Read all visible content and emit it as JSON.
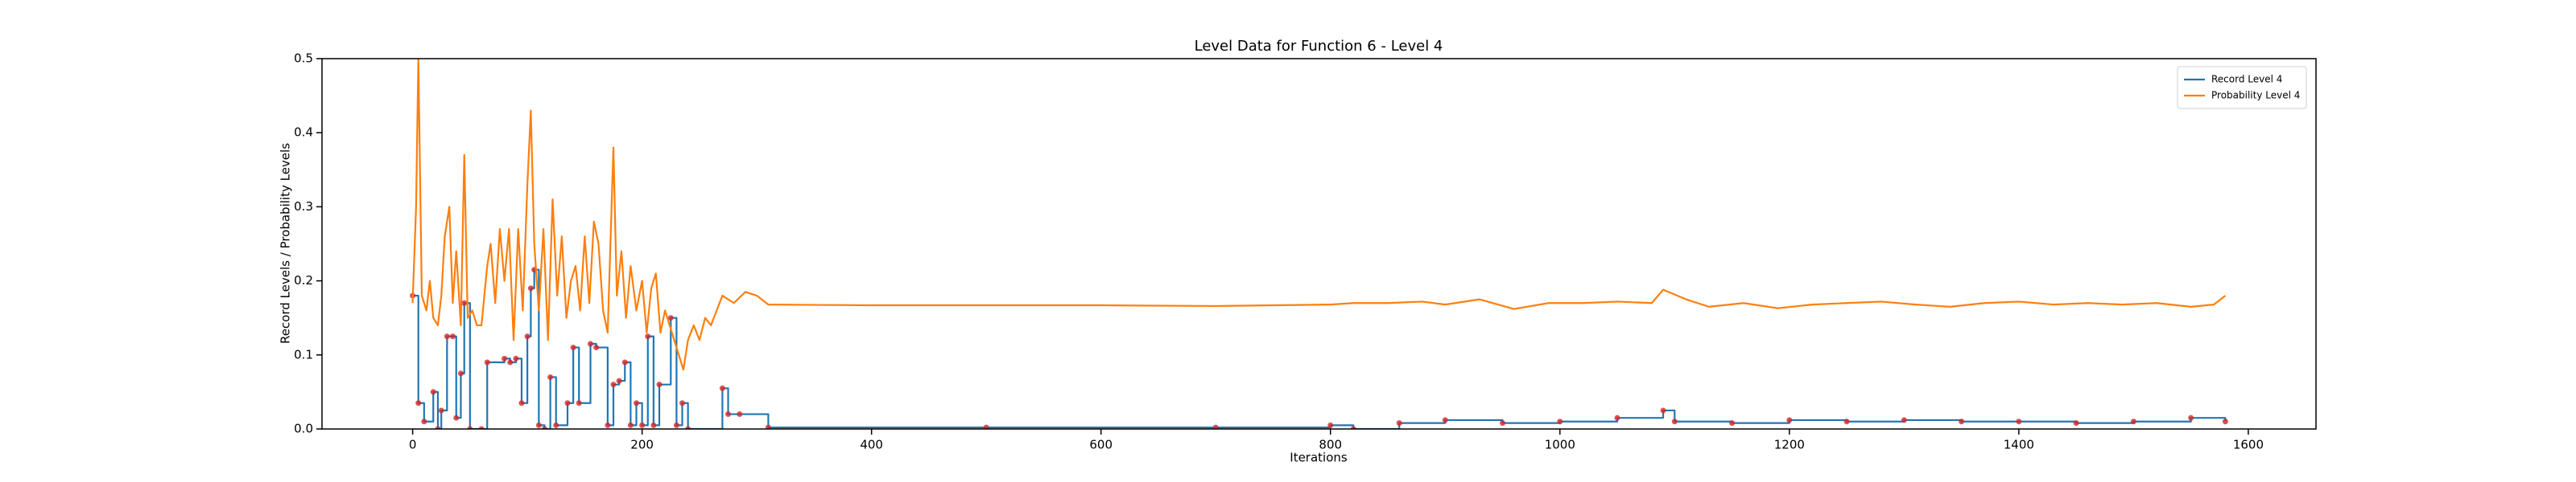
{
  "chart_data": {
    "type": "line",
    "title": "Level Data for Function 6 - Level 4",
    "x_label": "Iterations",
    "y_label": "Record Levels / Probability Levels",
    "xlim": [
      -79,
      1659
    ],
    "ylim": [
      0,
      0.5
    ],
    "xticks": [
      0,
      200,
      400,
      600,
      800,
      1000,
      1200,
      1400,
      1600
    ],
    "yticks": [
      {
        "value": 0,
        "label": "0.0"
      },
      0.1,
      0.2,
      0.3,
      0.4,
      0.5
    ],
    "legend": "upper right",
    "series": [
      {
        "name": "Record Level 4",
        "color": "#1f77b4",
        "drawstyle": "steps-post",
        "marker_color": "#d62728",
        "x": [
          0,
          5,
          10,
          18,
          22,
          25,
          30,
          35,
          38,
          42,
          45,
          50,
          60,
          65,
          80,
          85,
          90,
          95,
          100,
          103,
          106,
          110,
          115,
          120,
          125,
          135,
          140,
          145,
          155,
          160,
          170,
          175,
          180,
          185,
          190,
          195,
          200,
          205,
          210,
          215,
          225,
          230,
          235,
          240,
          270,
          275,
          285,
          310,
          500,
          700,
          800,
          820,
          860,
          900,
          950,
          1000,
          1050,
          1090,
          1100,
          1150,
          1200,
          1250,
          1300,
          1350,
          1400,
          1450,
          1500,
          1550,
          1580
        ],
        "values": [
          0.18,
          0.035,
          0.01,
          0.05,
          0.0,
          0.025,
          0.125,
          0.125,
          0.015,
          0.075,
          0.17,
          0.0,
          0.0,
          0.09,
          0.095,
          0.09,
          0.095,
          0.035,
          0.125,
          0.19,
          0.215,
          0.005,
          0.0,
          0.07,
          0.005,
          0.035,
          0.11,
          0.035,
          0.115,
          0.11,
          0.005,
          0.06,
          0.065,
          0.09,
          0.005,
          0.035,
          0.005,
          0.125,
          0.005,
          0.06,
          0.15,
          0.005,
          0.035,
          0.0,
          0.055,
          0.02,
          0.02,
          0.002,
          0.002,
          0.002,
          0.005,
          0.0,
          0.008,
          0.012,
          0.008,
          0.01,
          0.015,
          0.025,
          0.01,
          0.008,
          0.012,
          0.01,
          0.012,
          0.01,
          0.01,
          0.008,
          0.01,
          0.015,
          0.01
        ]
      },
      {
        "name": "Probability Level 4",
        "color": "#ff7f0e",
        "drawstyle": "default",
        "x": [
          0,
          3,
          5,
          8,
          12,
          15,
          18,
          22,
          25,
          28,
          32,
          35,
          38,
          42,
          45,
          48,
          52,
          56,
          60,
          65,
          68,
          72,
          76,
          80,
          84,
          88,
          92,
          96,
          100,
          103,
          106,
          110,
          114,
          118,
          122,
          126,
          130,
          134,
          138,
          142,
          146,
          150,
          154,
          158,
          162,
          166,
          170,
          175,
          178,
          182,
          186,
          190,
          195,
          200,
          204,
          208,
          212,
          216,
          220,
          224,
          228,
          232,
          236,
          240,
          245,
          250,
          255,
          260,
          265,
          270,
          280,
          290,
          300,
          310,
          400,
          500,
          600,
          700,
          800,
          820,
          850,
          880,
          900,
          930,
          960,
          990,
          1020,
          1050,
          1080,
          1090,
          1110,
          1130,
          1160,
          1190,
          1220,
          1250,
          1280,
          1310,
          1340,
          1370,
          1400,
          1430,
          1460,
          1490,
          1520,
          1550,
          1570,
          1580
        ],
        "values": [
          0.17,
          0.3,
          0.5,
          0.18,
          0.16,
          0.2,
          0.15,
          0.14,
          0.18,
          0.26,
          0.3,
          0.17,
          0.24,
          0.14,
          0.37,
          0.15,
          0.16,
          0.14,
          0.14,
          0.22,
          0.25,
          0.17,
          0.27,
          0.2,
          0.27,
          0.12,
          0.27,
          0.16,
          0.33,
          0.43,
          0.25,
          0.16,
          0.27,
          0.12,
          0.31,
          0.18,
          0.26,
          0.15,
          0.2,
          0.22,
          0.16,
          0.26,
          0.17,
          0.28,
          0.25,
          0.16,
          0.13,
          0.38,
          0.18,
          0.24,
          0.15,
          0.22,
          0.16,
          0.2,
          0.13,
          0.19,
          0.21,
          0.13,
          0.16,
          0.14,
          0.12,
          0.1,
          0.08,
          0.12,
          0.14,
          0.12,
          0.15,
          0.14,
          0.16,
          0.18,
          0.17,
          0.185,
          0.18,
          0.168,
          0.167,
          0.167,
          0.167,
          0.166,
          0.168,
          0.17,
          0.17,
          0.172,
          0.168,
          0.175,
          0.162,
          0.17,
          0.17,
          0.172,
          0.17,
          0.188,
          0.175,
          0.165,
          0.17,
          0.163,
          0.168,
          0.17,
          0.172,
          0.168,
          0.165,
          0.17,
          0.172,
          0.168,
          0.17,
          0.168,
          0.17,
          0.165,
          0.168,
          0.18
        ]
      }
    ]
  }
}
